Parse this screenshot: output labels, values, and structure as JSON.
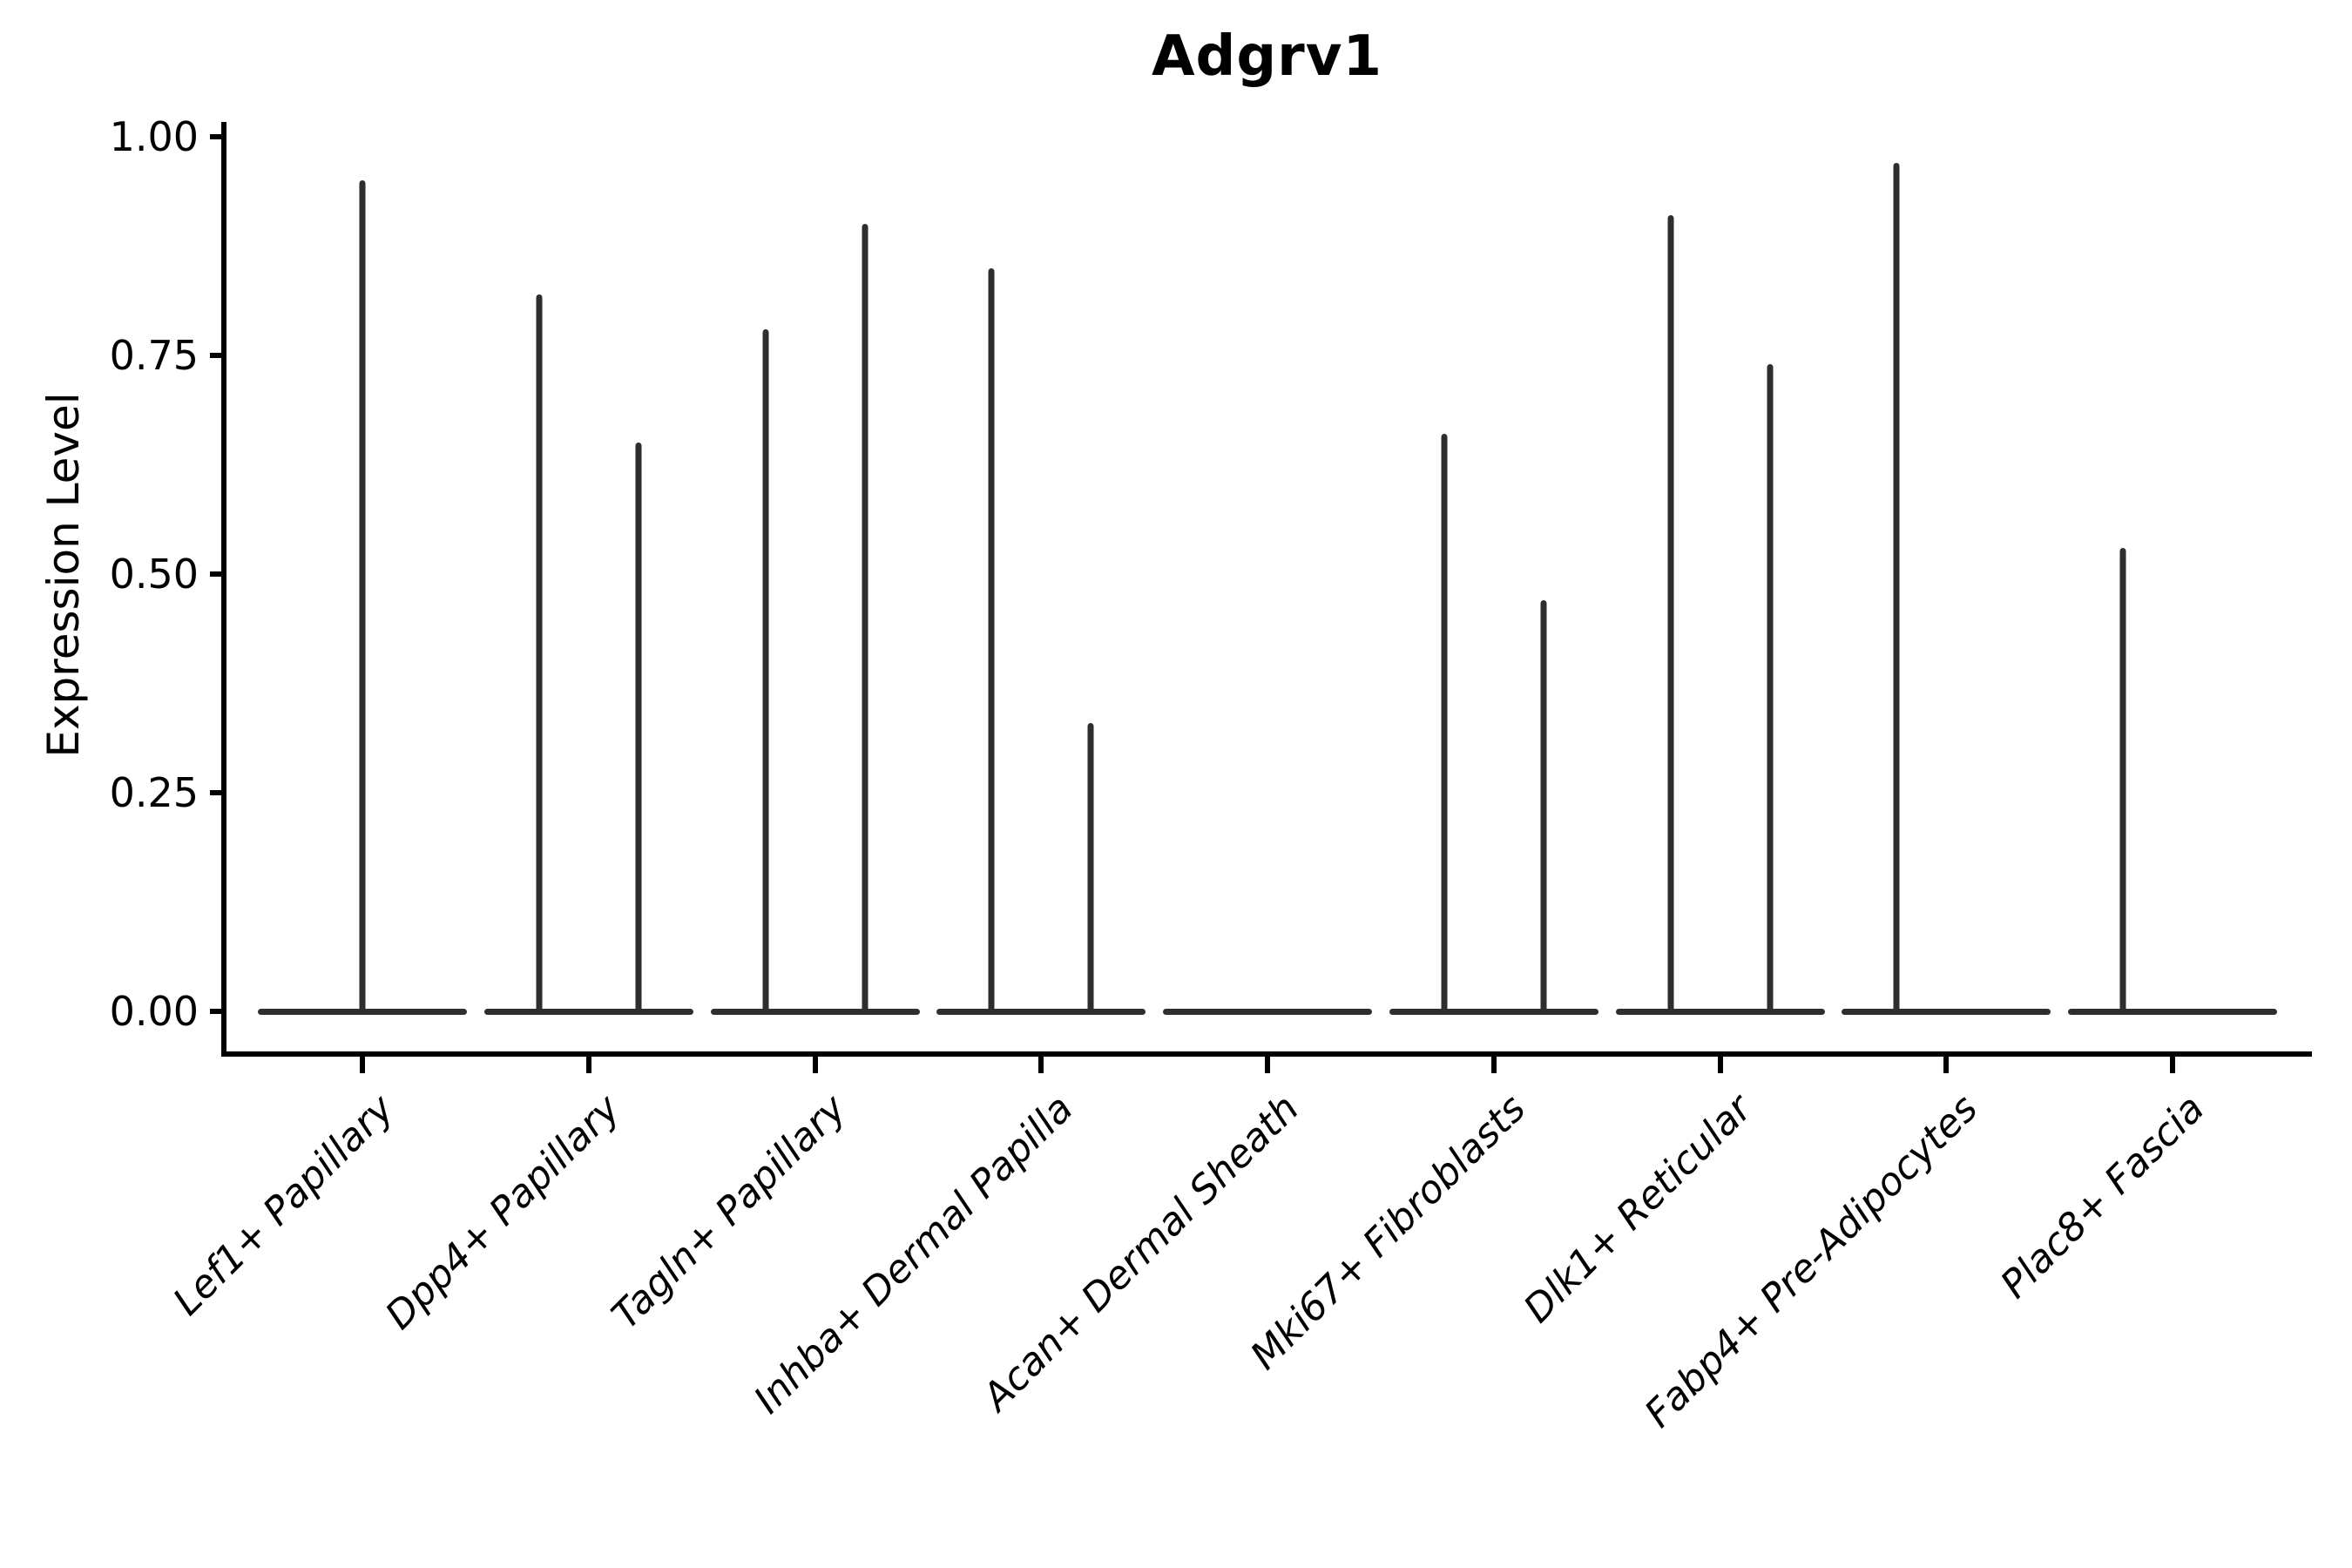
{
  "title": "Adgrv1",
  "y_axis": {
    "label": "Expression Level",
    "tick_labels": [
      "1.00",
      "0.75",
      "0.50",
      "0.25",
      "0.00"
    ],
    "tick_values": [
      1.0,
      0.75,
      0.5,
      0.25,
      0.0
    ]
  },
  "chart_data": {
    "type": "violin",
    "title": "Adgrv1",
    "xlabel": "",
    "ylabel": "Expression Level",
    "ylim": [
      0.0,
      1.0
    ],
    "y_ticks": [
      0.0,
      0.25,
      0.5,
      0.75,
      1.0
    ],
    "grid": false,
    "legend": "none",
    "line_color": "#2e2e2e",
    "description": "Violin plot of Adgrv1 expression per fibroblast cluster; each cluster shows a flat violin at 0 expression with thin needle-like density spikes reaching the maximum expression values listed.",
    "categories": [
      "Lef1+ Papillary",
      "Dpp4+ Papillary",
      "Tagln+ Papillary",
      "Inhba+ Dermal Papilla",
      "Acan+ Dermal Sheath",
      "Mki67+ Fibroblasts",
      "Dlk1+ Reticular",
      "Fabp4+ Pre-Adipocytes",
      "Plac8+ Fascia"
    ],
    "series": [
      {
        "category": "Lef1+ Papillary",
        "baseline_value": 0.0,
        "spikes": [
          {
            "position": "center",
            "max": 0.95
          }
        ]
      },
      {
        "category": "Dpp4+ Papillary",
        "baseline_value": 0.0,
        "spikes": [
          {
            "position": "left",
            "max": 0.82
          },
          {
            "position": "right",
            "max": 0.65
          }
        ]
      },
      {
        "category": "Tagln+ Papillary",
        "baseline_value": 0.0,
        "spikes": [
          {
            "position": "left",
            "max": 0.78
          },
          {
            "position": "right",
            "max": 0.9
          }
        ]
      },
      {
        "category": "Inhba+ Dermal Papilla",
        "baseline_value": 0.0,
        "spikes": [
          {
            "position": "left",
            "max": 0.85
          },
          {
            "position": "right",
            "max": 0.33
          }
        ]
      },
      {
        "category": "Acan+ Dermal Sheath",
        "baseline_value": 0.0,
        "spikes": []
      },
      {
        "category": "Mki67+ Fibroblasts",
        "baseline_value": 0.0,
        "spikes": [
          {
            "position": "left",
            "max": 0.66
          },
          {
            "position": "right",
            "max": 0.47
          }
        ]
      },
      {
        "category": "Dlk1+ Reticular",
        "baseline_value": 0.0,
        "spikes": [
          {
            "position": "left",
            "max": 0.91
          },
          {
            "position": "right",
            "max": 0.74
          }
        ]
      },
      {
        "category": "Fabp4+ Pre-Adipocytes",
        "baseline_value": 0.0,
        "spikes": [
          {
            "position": "left",
            "max": 0.97
          }
        ]
      },
      {
        "category": "Plac8+ Fascia",
        "baseline_value": 0.0,
        "spikes": [
          {
            "position": "left",
            "max": 0.53
          }
        ]
      }
    ]
  }
}
